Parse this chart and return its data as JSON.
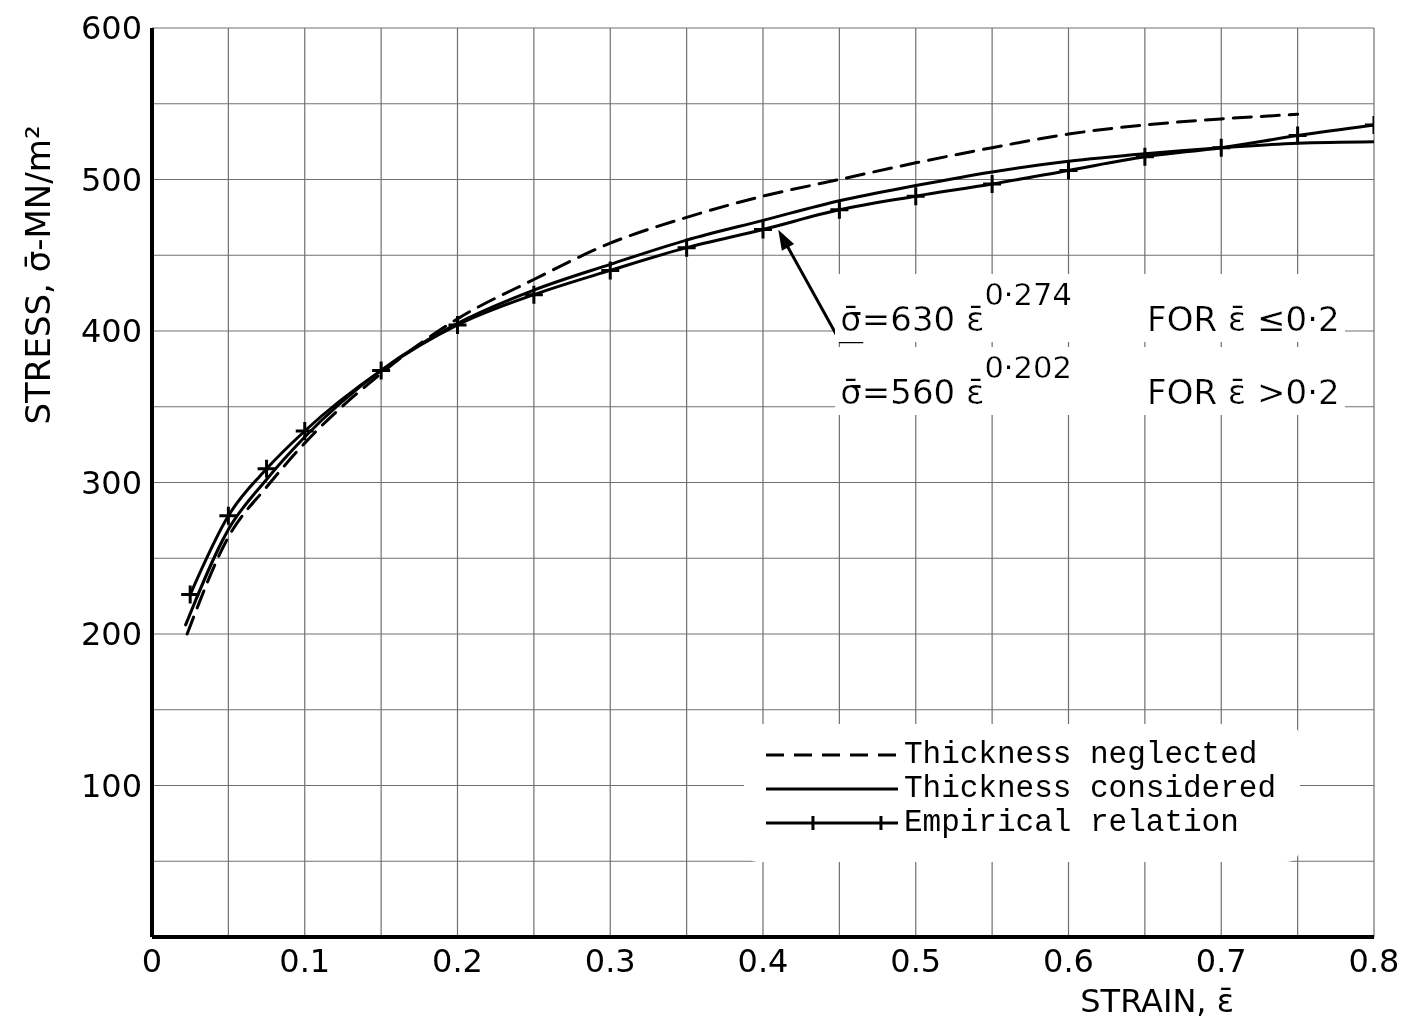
{
  "chart_data": {
    "type": "line",
    "xlabel": "STRAIN, ε̄",
    "ylabel": "STRESS, σ̄-MN/m²",
    "annotations": [
      "σ̄=630 ε̄$^{0·274}$ FOR ε̄ ≤0·2",
      "σ̄=560 ε̄$^{0·202}$ FOR ε̄ >0·2"
    ],
    "xlim": [
      0,
      0.8
    ],
    "xticks": [
      0,
      {
        "value": 0.05,
        "label": null
      },
      0.1,
      {
        "value": 0.15,
        "label": null
      },
      0.2,
      {
        "value": 0.25,
        "label": null
      },
      0.3,
      {
        "value": 0.35,
        "label": null
      },
      0.4,
      {
        "value": 0.45,
        "label": null
      },
      0.5,
      {
        "value": 0.55,
        "label": null
      },
      0.6,
      {
        "value": 0.65,
        "label": null
      },
      0.7,
      {
        "value": 0.75,
        "label": null
      },
      0.8
    ],
    "ylim": [
      0,
      600
    ],
    "yticks": [
      {
        "value": 50,
        "label": null
      },
      100,
      {
        "value": 150,
        "label": null
      },
      200,
      {
        "value": 250,
        "label": null
      },
      300,
      {
        "value": 350,
        "label": null
      },
      400,
      {
        "value": 450,
        "label": null
      },
      500,
      {
        "value": 550,
        "label": null
      },
      600
    ],
    "grid": true,
    "legend": "bottom right",
    "series": [
      {
        "name": "Thickness neglected",
        "color": "#000000",
        "line_style": "dashed",
        "x": [
          0.023,
          0.05,
          0.075,
          0.1,
          0.15,
          0.2,
          0.25,
          0.3,
          0.35,
          0.4,
          0.45,
          0.5,
          0.55,
          0.6,
          0.65,
          0.7,
          0.75
        ],
        "values": [
          200,
          264,
          297,
          326,
          372,
          408,
          434,
          458,
          475,
          489,
          500,
          511,
          521,
          530,
          536,
          540,
          543
        ]
      },
      {
        "name": "Thickness considered",
        "color": "#000000",
        "line_style": "solid",
        "x": [
          0.022,
          0.05,
          0.075,
          0.1,
          0.15,
          0.2,
          0.25,
          0.3,
          0.35,
          0.4,
          0.45,
          0.5,
          0.55,
          0.6,
          0.65,
          0.7,
          0.75,
          0.8
        ],
        "values": [
          206,
          269,
          302,
          330,
          374,
          405,
          427,
          444,
          460,
          473,
          486,
          496,
          505,
          512,
          517,
          521,
          524,
          525
        ]
      },
      {
        "name": "Empirical relation",
        "color": "#000000",
        "line_style": "solid",
        "marker": "cross",
        "x": [
          0.025,
          0.05,
          0.075,
          0.1,
          0.15,
          0.2,
          0.25,
          0.3,
          0.35,
          0.4,
          0.45,
          0.5,
          0.55,
          0.6,
          0.65,
          0.7,
          0.75,
          0.8
        ],
        "values": [
          226,
          278,
          309,
          334,
          374,
          404,
          424,
          440,
          455,
          467,
          480,
          489,
          497,
          506,
          515,
          521,
          529,
          536
        ]
      }
    ]
  }
}
